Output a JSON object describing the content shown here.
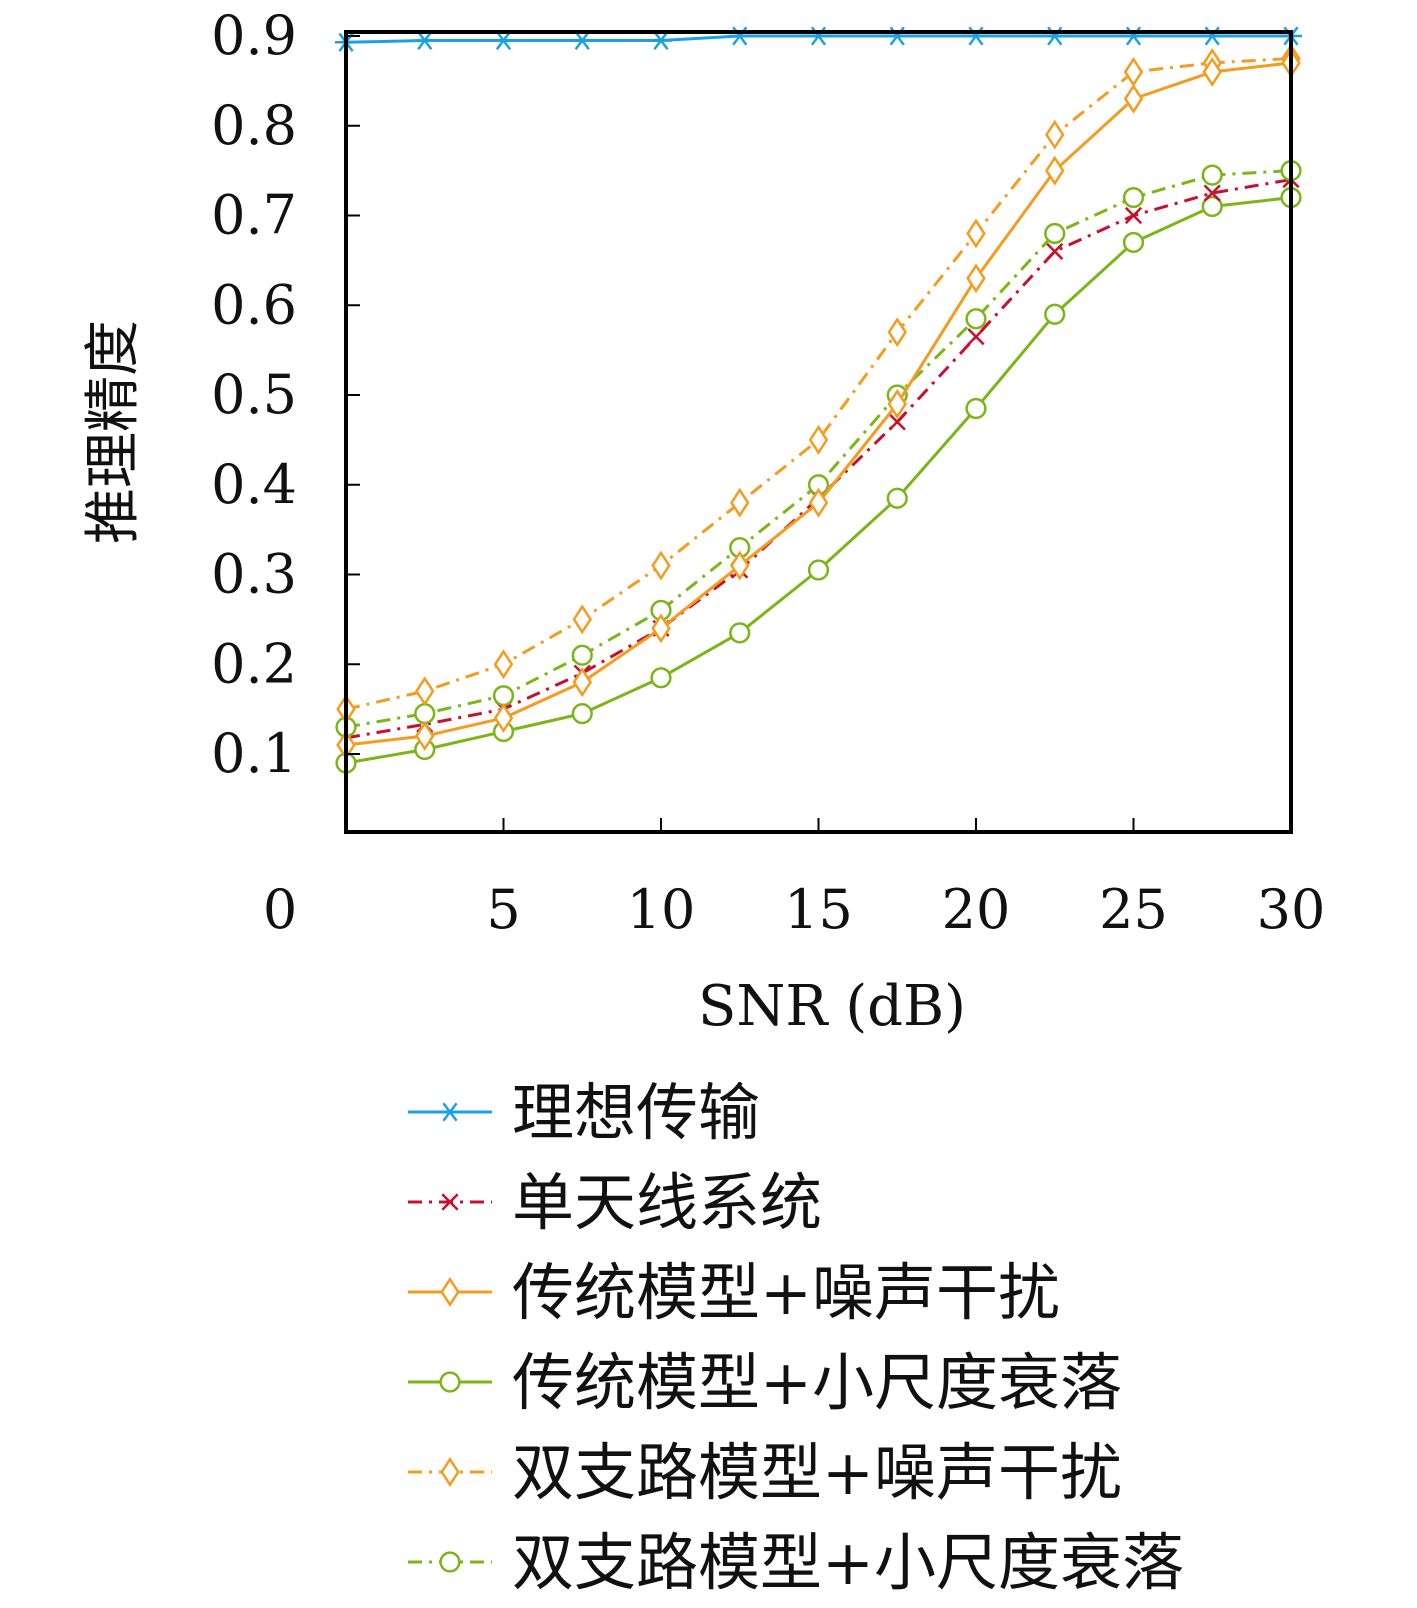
{
  "chart_data": {
    "type": "line",
    "title": "",
    "xlabel": "SNR (dB)",
    "ylabel": "推理精度",
    "xlim": [
      0,
      30
    ],
    "ylim": [
      0,
      0.9
    ],
    "xticks": [
      0,
      5,
      10,
      15,
      20,
      25,
      30
    ],
    "yticks": [
      0.1,
      0.2,
      0.3,
      0.4,
      0.5,
      0.6,
      0.7,
      0.8,
      0.9
    ],
    "xtick_labels": [
      "0",
      "5",
      "10",
      "15",
      "20",
      "25",
      "30"
    ],
    "ytick_labels": [
      "0.1",
      "0.2",
      "0.3",
      "0.4",
      "0.5",
      "0.6",
      "0.7",
      "0.8",
      "0.9"
    ],
    "grid": false,
    "legend_position": "below",
    "x": [
      0,
      2.5,
      5,
      7.5,
      10,
      12.5,
      15,
      17.5,
      20,
      22.5,
      25,
      27.5,
      30
    ],
    "series": [
      {
        "name": "理想传输",
        "color": "#1ba1e2",
        "dash": "solid",
        "marker": "star",
        "values": [
          0.893,
          0.895,
          0.895,
          0.895,
          0.895,
          0.9,
          0.9,
          0.9,
          0.9,
          0.9,
          0.9,
          0.9,
          0.9
        ]
      },
      {
        "name": "单天线系统",
        "color": "#c8102e",
        "dash": "dashdot",
        "marker": "x",
        "values": [
          0.118,
          0.133,
          0.15,
          0.19,
          0.24,
          0.305,
          0.385,
          0.47,
          0.565,
          0.66,
          0.7,
          0.725,
          0.74
        ]
      },
      {
        "name": "传统模型+噪声干扰",
        "color": "#f39c1f",
        "dash": "solid",
        "marker": "diamond",
        "values": [
          0.11,
          0.12,
          0.14,
          0.18,
          0.24,
          0.31,
          0.38,
          0.49,
          0.63,
          0.75,
          0.83,
          0.86,
          0.87
        ]
      },
      {
        "name": "传统模型+小尺度衰落",
        "color": "#7cb518",
        "dash": "solid",
        "marker": "circle",
        "values": [
          0.09,
          0.105,
          0.125,
          0.145,
          0.185,
          0.235,
          0.305,
          0.385,
          0.485,
          0.59,
          0.67,
          0.71,
          0.72
        ]
      },
      {
        "name": "双支路模型+噪声干扰",
        "color": "#f39c1f",
        "dash": "dashdot",
        "marker": "diamond",
        "values": [
          0.15,
          0.17,
          0.2,
          0.25,
          0.31,
          0.38,
          0.45,
          0.57,
          0.68,
          0.79,
          0.86,
          0.87,
          0.875
        ]
      },
      {
        "name": "双支路模型+小尺度衰落",
        "color": "#7cb518",
        "dash": "dashdot",
        "marker": "circle",
        "values": [
          0.13,
          0.145,
          0.165,
          0.21,
          0.26,
          0.33,
          0.4,
          0.5,
          0.585,
          0.68,
          0.72,
          0.745,
          0.75
        ]
      }
    ]
  }
}
